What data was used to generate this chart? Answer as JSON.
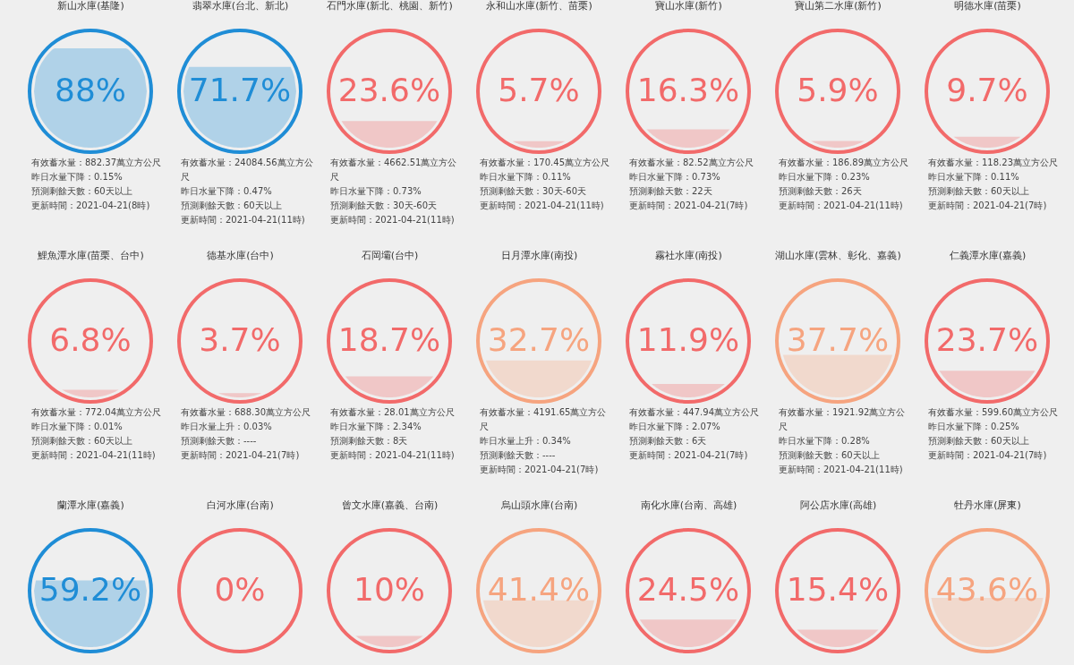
{
  "chart_data": [
    {
      "type": "other",
      "title": "新山水庫(基隆)",
      "values": [
        88
      ],
      "value_labels": [
        "88%"
      ],
      "color": "#1f8dd6",
      "annotations": [
        "有效蓄水量：882.37萬立方公尺",
        "昨日水量下降：0.15%",
        "預測剩餘天數：60天以上",
        "更新時間：2021-04-21(8時)"
      ]
    },
    {
      "type": "other",
      "title": "翡翠水庫(台北、新北)",
      "values": [
        71.7
      ],
      "value_labels": [
        "71.7%"
      ],
      "color": "#1f8dd6",
      "annotations": [
        "有效蓄水量：24084.56萬立方公尺",
        "昨日水量下降：0.47%",
        "預測剩餘天數：60天以上",
        "更新時間：2021-04-21(11時)"
      ]
    },
    {
      "type": "other",
      "title": "石門水庫(新北、桃園、新竹)",
      "values": [
        23.6
      ],
      "value_labels": [
        "23.6%"
      ],
      "color": "#f26a6a",
      "annotations": [
        "有效蓄水量：4662.51萬立方公尺",
        "昨日水量下降：0.73%",
        "預測剩餘天數：30天-60天",
        "更新時間：2021-04-21(11時)"
      ]
    },
    {
      "type": "other",
      "title": "永和山水庫(新竹、苗栗)",
      "values": [
        5.7
      ],
      "value_labels": [
        "5.7%"
      ],
      "color": "#f26a6a",
      "annotations": [
        "有效蓄水量：170.45萬立方公尺",
        "昨日水量下降：0.11%",
        "預測剩餘天數：30天-60天",
        "更新時間：2021-04-21(11時)"
      ]
    },
    {
      "type": "other",
      "title": "寶山水庫(新竹)",
      "values": [
        16.3
      ],
      "value_labels": [
        "16.3%"
      ],
      "color": "#f26a6a",
      "annotations": [
        "有效蓄水量：82.52萬立方公尺",
        "昨日水量下降：0.73%",
        "預測剩餘天數：22天",
        "更新時間：2021-04-21(7時)"
      ]
    },
    {
      "type": "other",
      "title": "寶山第二水庫(新竹)",
      "values": [
        5.9
      ],
      "value_labels": [
        "5.9%"
      ],
      "color": "#f26a6a",
      "annotations": [
        "有效蓄水量：186.89萬立方公尺",
        "昨日水量下降：0.23%",
        "預測剩餘天數：26天",
        "更新時間：2021-04-21(11時)"
      ]
    },
    {
      "type": "other",
      "title": "明德水庫(苗栗)",
      "values": [
        9.7
      ],
      "value_labels": [
        "9.7%"
      ],
      "color": "#f26a6a",
      "annotations": [
        "有效蓄水量：118.23萬立方公尺",
        "昨日水量下降：0.11%",
        "預測剩餘天數：60天以上",
        "更新時間：2021-04-21(7時)"
      ]
    },
    {
      "type": "other",
      "title": "鯉魚潭水庫(苗栗、台中)",
      "values": [
        6.8
      ],
      "value_labels": [
        "6.8%"
      ],
      "color": "#f26a6a",
      "annotations": [
        "有效蓄水量：772.04萬立方公尺",
        "昨日水量下降：0.01%",
        "預測剩餘天數：60天以上",
        "更新時間：2021-04-21(11時)"
      ]
    },
    {
      "type": "other",
      "title": "德基水庫(台中)",
      "values": [
        3.7
      ],
      "value_labels": [
        "3.7%"
      ],
      "color": "#f26a6a",
      "annotations": [
        "有效蓄水量：688.30萬立方公尺",
        "昨日水量上升：0.03%",
        "預測剩餘天數：----",
        "更新時間：2021-04-21(7時)"
      ]
    },
    {
      "type": "other",
      "title": "石岡壩(台中)",
      "values": [
        18.7
      ],
      "value_labels": [
        "18.7%"
      ],
      "color": "#f26a6a",
      "annotations": [
        "有效蓄水量：28.01萬立方公尺",
        "昨日水量下降：2.34%",
        "預測剩餘天數：8天",
        "更新時間：2021-04-21(11時)"
      ]
    },
    {
      "type": "other",
      "title": "日月潭水庫(南投)",
      "values": [
        32.7
      ],
      "value_labels": [
        "32.7%"
      ],
      "color": "#f6a47f",
      "annotations": [
        "有效蓄水量：4191.65萬立方公尺",
        "昨日水量上升：0.34%",
        "預測剩餘天數：----",
        "更新時間：2021-04-21(7時)"
      ]
    },
    {
      "type": "other",
      "title": "霧社水庫(南投)",
      "values": [
        11.9
      ],
      "value_labels": [
        "11.9%"
      ],
      "color": "#f26a6a",
      "annotations": [
        "有效蓄水量：447.94萬立方公尺",
        "昨日水量下降：2.07%",
        "預測剩餘天數：6天",
        "更新時間：2021-04-21(7時)"
      ]
    },
    {
      "type": "other",
      "title": "湖山水庫(雲林、彰化、嘉義)",
      "values": [
        37.7
      ],
      "value_labels": [
        "37.7%"
      ],
      "color": "#f6a47f",
      "annotations": [
        "有效蓄水量：1921.92萬立方公尺",
        "昨日水量下降：0.28%",
        "預測剩餘天數：60天以上",
        "更新時間：2021-04-21(11時)"
      ]
    },
    {
      "type": "other",
      "title": "仁義潭水庫(嘉義)",
      "values": [
        23.7
      ],
      "value_labels": [
        "23.7%"
      ],
      "color": "#f26a6a",
      "annotations": [
        "有效蓄水量：599.60萬立方公尺",
        "昨日水量下降：0.25%",
        "預測剩餘天數：60天以上",
        "更新時間：2021-04-21(7時)"
      ]
    },
    {
      "type": "other",
      "title": "蘭潭水庫(嘉義)",
      "values": [
        59.2
      ],
      "value_labels": [
        "59.2%"
      ],
      "color": "#1f8dd6"
    },
    {
      "type": "other",
      "title": "白河水庫(台南)",
      "values": [
        0
      ],
      "value_labels": [
        "0%"
      ],
      "color": "#f26a6a"
    },
    {
      "type": "other",
      "title": "曾文水庫(嘉義、台南)",
      "values": [
        10
      ],
      "value_labels": [
        "10%"
      ],
      "color": "#f26a6a"
    },
    {
      "type": "other",
      "title": "烏山頭水庫(台南)",
      "values": [
        41.4
      ],
      "value_labels": [
        "41.4%"
      ],
      "color": "#f6a47f"
    },
    {
      "type": "other",
      "title": "南化水庫(台南、高雄)",
      "values": [
        24.5
      ],
      "value_labels": [
        "24.5%"
      ],
      "color": "#f26a6a"
    },
    {
      "type": "other",
      "title": "阿公店水庫(高雄)",
      "values": [
        15.4
      ],
      "value_labels": [
        "15.4%"
      ],
      "color": "#f26a6a"
    },
    {
      "type": "other",
      "title": "牡丹水庫(屏東)",
      "values": [
        43.6
      ],
      "value_labels": [
        "43.6%"
      ],
      "color": "#f6a47f"
    }
  ]
}
